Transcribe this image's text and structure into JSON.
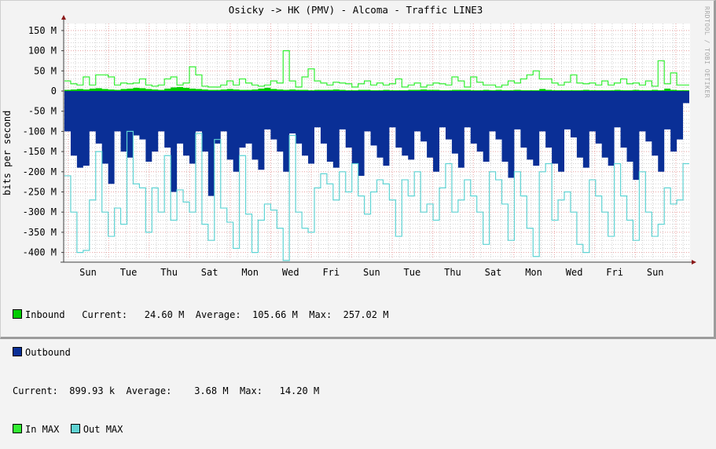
{
  "title": "Osicky -> HK (PMV) - Alcoma - Traffic LINE3",
  "vendor_tag": "RRDTOOL / TOBI OETIKER",
  "ylabel": "bits per second",
  "colors": {
    "inbound": "#00cc00",
    "outbound": "#0a2f96",
    "in_max": "#33ee33",
    "out_max": "#5fd3d3",
    "grid_major": "#e8a0a0",
    "grid_minor": "#d0d0d0",
    "axis": "#404040",
    "arrow": "#8b1a1a"
  },
  "legend": {
    "inbound": {
      "label": "Inbound",
      "current_label": "Current:",
      "current": "24.60 M",
      "average_label": "Average:",
      "average": "105.66 M",
      "max_label": "Max:",
      "max": "257.02 M"
    },
    "outbound": {
      "label": "Outbound",
      "current_label": "Current:",
      "current": "899.93 k",
      "average_label": "Average:",
      "average": "3.68 M",
      "max_label": "Max:",
      "max": "14.20 M"
    },
    "in_max": {
      "label": "In MAX"
    },
    "out_max": {
      "label": "Out MAX"
    }
  },
  "chart_data": {
    "type": "area",
    "title": "Osicky -> HK (PMV) - Alcoma - Traffic LINE3",
    "xlabel": "",
    "ylabel": "bits per second",
    "ylim": [
      -420,
      160
    ],
    "y_unit": "M",
    "yticks": [
      150,
      100,
      50,
      0,
      -50,
      -100,
      -150,
      -200,
      -250,
      -300,
      -350,
      -400
    ],
    "ytick_labels": [
      "150 M",
      "100 M",
      "50 M",
      "0",
      "-50 M",
      "-100 M",
      "-150 M",
      "-200 M",
      "-250 M",
      "-300 M",
      "-350 M",
      "-400 M"
    ],
    "xtick_labels": [
      "Sun",
      "Tue",
      "Thu",
      "Sat",
      "Mon",
      "Wed",
      "Fri",
      "Sun",
      "Tue",
      "Thu",
      "Sat",
      "Mon",
      "Wed",
      "Fri",
      "Sun"
    ],
    "grid": true,
    "legend_position": "bottom",
    "series": [
      {
        "name": "Inbound",
        "style": "area",
        "values": [
          3,
          4,
          5,
          4,
          6,
          7,
          5,
          4,
          3,
          5,
          6,
          8,
          7,
          5,
          4,
          3,
          6,
          9,
          10,
          8,
          6,
          5,
          4,
          3,
          3,
          4,
          5,
          4,
          3,
          3,
          4,
          6,
          8,
          5,
          4,
          3,
          4,
          3,
          3,
          2,
          3,
          3,
          3,
          4,
          3,
          2,
          2,
          3,
          3,
          2,
          2,
          3,
          2,
          2,
          2,
          3,
          3,
          4,
          3,
          3,
          2,
          2,
          3,
          3,
          3,
          2,
          2,
          3,
          2,
          3,
          2,
          2,
          3,
          2,
          2,
          2,
          5,
          3,
          2,
          2,
          2,
          2,
          2,
          3,
          2,
          2,
          2,
          2,
          3,
          2,
          2,
          3,
          2,
          2,
          3,
          2,
          6,
          3,
          2,
          2
        ]
      },
      {
        "name": "Outbound",
        "style": "area",
        "values": [
          -100,
          -160,
          -190,
          -185,
          -100,
          -130,
          -180,
          -230,
          -100,
          -150,
          -165,
          -110,
          -120,
          -175,
          -150,
          -100,
          -140,
          -250,
          -130,
          -160,
          -180,
          -100,
          -150,
          -260,
          -130,
          -100,
          -170,
          -200,
          -140,
          -130,
          -170,
          -195,
          -95,
          -120,
          -150,
          -200,
          -105,
          -130,
          -160,
          -180,
          -90,
          -130,
          -175,
          -190,
          -95,
          -140,
          -180,
          -210,
          -100,
          -135,
          -165,
          -185,
          -90,
          -140,
          -160,
          -170,
          -100,
          -125,
          -165,
          -200,
          -90,
          -120,
          -155,
          -190,
          -90,
          -130,
          -150,
          -175,
          -100,
          -120,
          -175,
          -215,
          -95,
          -140,
          -170,
          -185,
          -100,
          -140,
          -180,
          -200,
          -95,
          -115,
          -165,
          -190,
          -100,
          -130,
          -165,
          -185,
          -90,
          -140,
          -175,
          -220,
          -100,
          -125,
          -160,
          -200,
          -95,
          -150,
          -120,
          -30
        ]
      },
      {
        "name": "In MAX",
        "style": "line",
        "values": [
          25,
          18,
          15,
          35,
          15,
          40,
          40,
          35,
          15,
          20,
          18,
          20,
          30,
          15,
          12,
          15,
          30,
          35,
          15,
          20,
          60,
          40,
          12,
          10,
          10,
          15,
          25,
          15,
          30,
          20,
          15,
          12,
          15,
          25,
          20,
          100,
          25,
          10,
          35,
          55,
          25,
          20,
          15,
          22,
          20,
          18,
          10,
          18,
          25,
          15,
          20,
          15,
          18,
          30,
          10,
          15,
          20,
          10,
          15,
          20,
          18,
          15,
          35,
          25,
          10,
          35,
          22,
          15,
          15,
          10,
          15,
          25,
          20,
          30,
          40,
          50,
          30,
          30,
          20,
          15,
          22,
          40,
          20,
          18,
          20,
          15,
          25,
          15,
          20,
          30,
          18,
          20,
          15,
          25,
          12,
          75,
          18,
          45,
          15,
          15
        ]
      },
      {
        "name": "Out MAX",
        "style": "line",
        "values": [
          -210,
          -300,
          -400,
          -395,
          -270,
          -150,
          -300,
          -360,
          -290,
          -330,
          -100,
          -230,
          -240,
          -350,
          -240,
          -300,
          -160,
          -320,
          -245,
          -275,
          -300,
          -105,
          -330,
          -370,
          -120,
          -290,
          -325,
          -390,
          -160,
          -305,
          -400,
          -320,
          -280,
          -295,
          -340,
          -420,
          -110,
          -300,
          -340,
          -350,
          -240,
          -205,
          -230,
          -270,
          -200,
          -250,
          -180,
          -260,
          -305,
          -250,
          -220,
          -230,
          -270,
          -360,
          -220,
          -260,
          -200,
          -300,
          -280,
          -320,
          -240,
          -180,
          -300,
          -270,
          -220,
          -260,
          -300,
          -380,
          -200,
          -220,
          -280,
          -370,
          -200,
          -260,
          -340,
          -410,
          -200,
          -180,
          -320,
          -270,
          -250,
          -300,
          -380,
          -400,
          -220,
          -260,
          -300,
          -360,
          -180,
          -260,
          -320,
          -370,
          -200,
          -300,
          -360,
          -330,
          -240,
          -280,
          -270,
          -180
        ]
      }
    ]
  }
}
